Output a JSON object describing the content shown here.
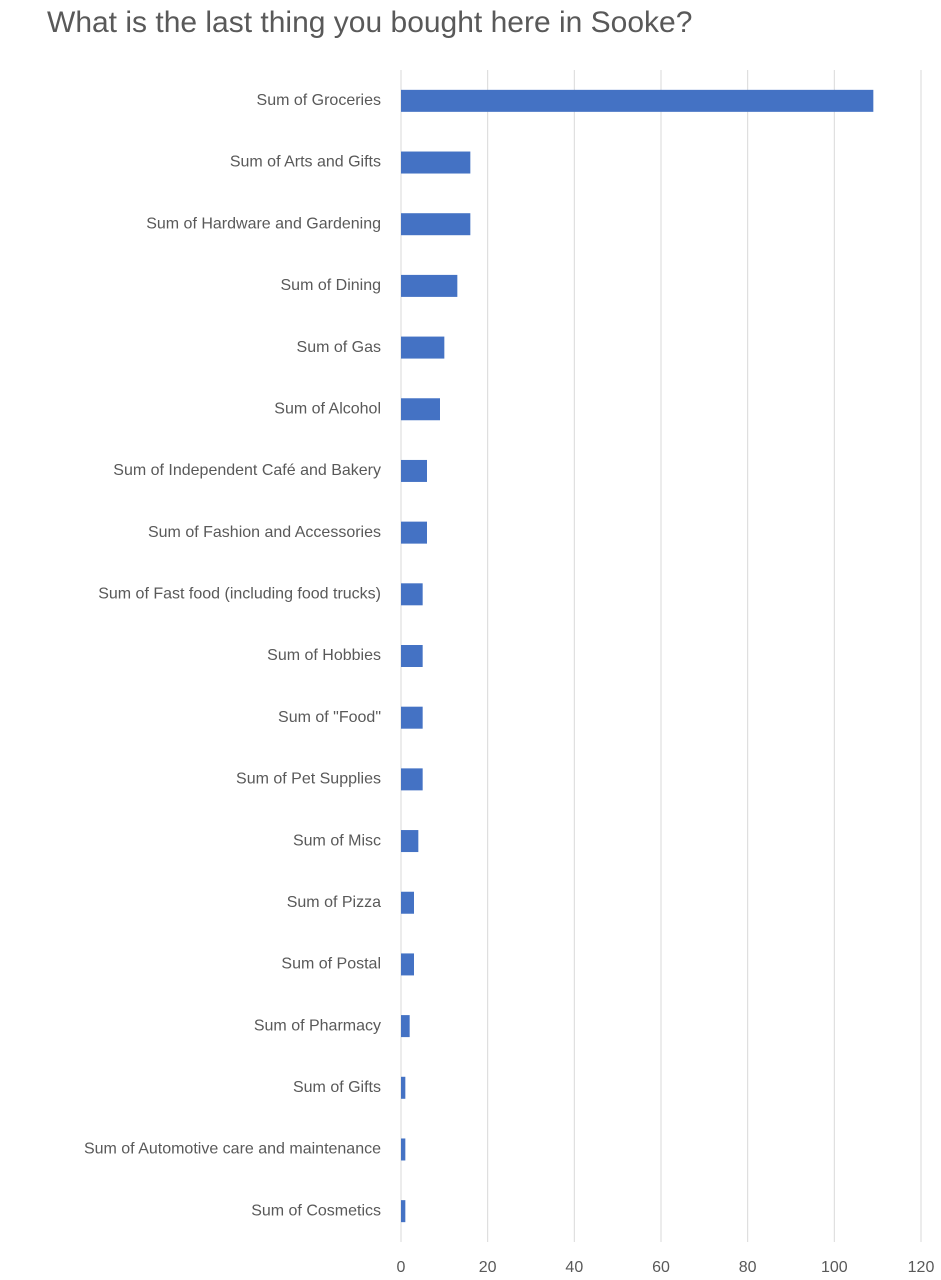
{
  "chart_data": {
    "type": "bar",
    "orientation": "horizontal",
    "title": "What is the last thing you bought here in Sooke?",
    "categories": [
      "Sum of Groceries",
      "Sum of Arts and Gifts",
      "Sum of Hardware and Gardening",
      "Sum of Dining",
      "Sum of Gas",
      "Sum of Alcohol",
      "Sum of Independent Café and Bakery",
      "Sum of Fashion and Accessories",
      "Sum of Fast food (including food trucks)",
      "Sum of Hobbies",
      "Sum of \"Food\"",
      "Sum of Pet Supplies",
      "Sum of Misc",
      "Sum of Pizza",
      "Sum of Postal",
      "Sum of Pharmacy",
      "Sum of Gifts",
      "Sum of Automotive care and maintenance",
      "Sum of Cosmetics"
    ],
    "values": [
      109,
      16,
      16,
      13,
      10,
      9,
      6,
      6,
      5,
      5,
      5,
      5,
      4,
      3,
      3,
      2,
      1,
      1,
      1
    ],
    "color": "#4472c4",
    "xlim": [
      0,
      120
    ],
    "xticks": [
      0,
      20,
      40,
      60,
      80,
      100,
      120
    ],
    "grid": true
  }
}
